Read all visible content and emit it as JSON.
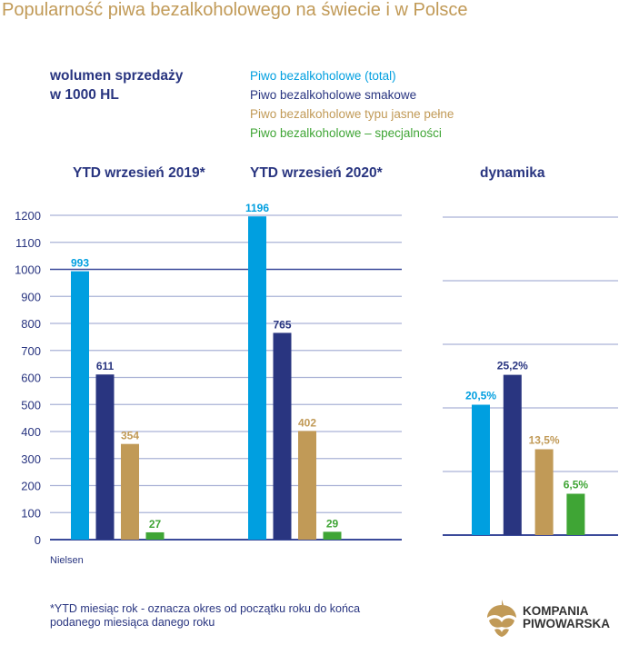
{
  "title": "Popularność piwa bezalkoholowego na świecie i w Polsce",
  "unit_label": [
    "wolumen sprzedaży",
    "w 1000 HL"
  ],
  "source": "Nielsen",
  "footnote": "*YTD miesiąc rok - oznacza okres od początku roku do końca podanego miesiąca danego roku",
  "logo": {
    "line1": "KOMPANIA",
    "line2": "PIWOWARSKA",
    "icon": "hop-icon"
  },
  "colors": {
    "total": "#009fe0",
    "smakowe": "#293580",
    "jasne": "#c19a57",
    "specjalnosci": "#3fa535"
  },
  "chart_data": [
    {
      "type": "bar",
      "title": "",
      "ylabel": "wolumen sprzedaży w 1000 HL",
      "categories": [
        "YTD wrzesień 2019*",
        "YTD wrzesień 2020*"
      ],
      "series": [
        {
          "name": "Piwo bezalkoholowe (total)",
          "values": [
            993,
            1196
          ],
          "labels": [
            "993",
            "1196"
          ]
        },
        {
          "name": "Piwo bezalkoholowe smakowe",
          "values": [
            611,
            765
          ],
          "labels": [
            "611",
            "765"
          ]
        },
        {
          "name": "Piwo bezalkoholowe typu jasne pełne",
          "values": [
            354,
            402
          ],
          "labels": [
            "354",
            "402"
          ]
        },
        {
          "name": "Piwo bezalkoholowe – specjalności",
          "values": [
            27,
            29
          ],
          "labels": [
            "27",
            "29"
          ]
        }
      ],
      "ylim": [
        0,
        1200
      ],
      "yticks": [
        "0",
        "100",
        "200",
        "300",
        "400",
        "500",
        "600",
        "700",
        "800",
        "900",
        "1000",
        "1100",
        "1200"
      ],
      "grid": true,
      "legend": "top"
    },
    {
      "type": "bar",
      "title": "dynamika",
      "categories": [
        "Piwo bezalkoholowe (total)",
        "Piwo bezalkoholowe smakowe",
        "Piwo bezalkoholowe typu jasne pełne",
        "Piwo bezalkoholowe – specjalności"
      ],
      "values": [
        20.5,
        25.2,
        13.5,
        6.5
      ],
      "labels": [
        "20,5%",
        "25,2%",
        "13,5%",
        "6,5%"
      ],
      "ylim": [
        0,
        50
      ],
      "grid": true
    }
  ]
}
